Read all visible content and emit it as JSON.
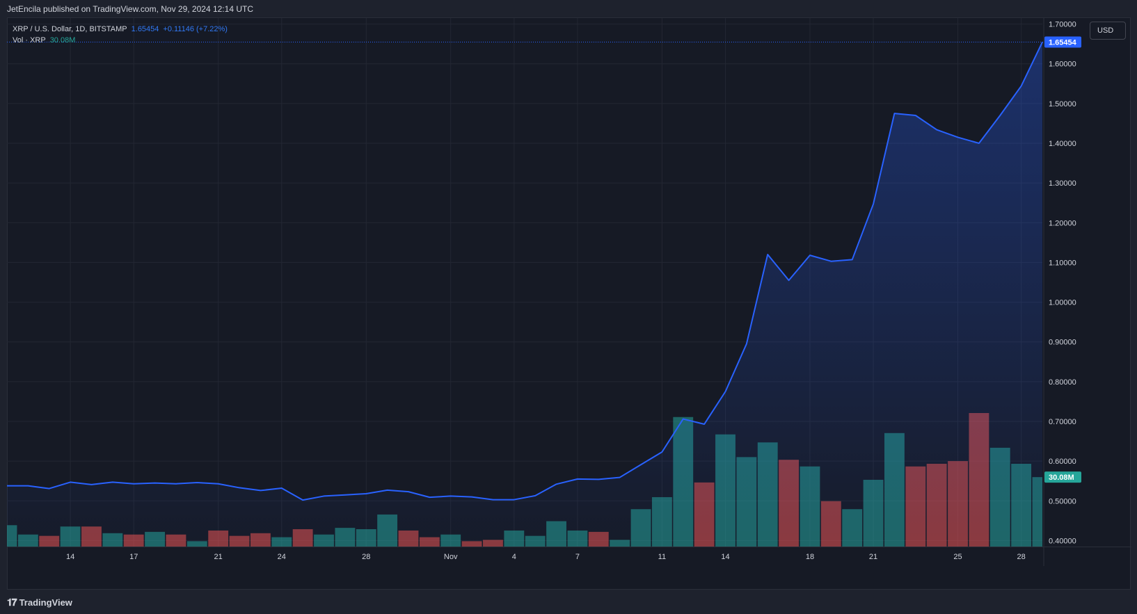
{
  "header": {
    "published_text": "JetEncila published on TradingView.com, Nov 29, 2024 12:14 UTC"
  },
  "legend": {
    "symbol_text": "XRP / U.S. Dollar, 1D, BITSTAMP",
    "last_price": "1.65454",
    "change": "+0.11146 (+7.22%)",
    "vol_label": "Vol · XRP",
    "vol_value": "30.08M"
  },
  "currency_button": "USD",
  "footer": {
    "brand": "TradingView"
  },
  "colors": {
    "line": "#2962ff",
    "area_top": "#2962ff",
    "vol_up": "#26a69a",
    "vol_down": "#ef5350",
    "price_badge": "#2962ff",
    "vol_badge": "#26a69a"
  },
  "chart_data": {
    "type": "area",
    "title": "",
    "xlabel": "",
    "ylabel": "",
    "y_axis_ticks": [
      "1.70000",
      "1.60000",
      "1.50000",
      "1.40000",
      "1.30000",
      "1.20000",
      "1.10000",
      "1.00000",
      "0.90000",
      "0.80000",
      "0.70000",
      "0.60000",
      "0.50000",
      "0.40000"
    ],
    "ylim": [
      0.385,
      1.715
    ],
    "x_axis_ticks": [
      {
        "label": "14",
        "date": "2024-10-14"
      },
      {
        "label": "17",
        "date": "2024-10-17"
      },
      {
        "label": "21",
        "date": "2024-10-21"
      },
      {
        "label": "24",
        "date": "2024-10-24"
      },
      {
        "label": "28",
        "date": "2024-10-28"
      },
      {
        "label": "Nov",
        "date": "2024-11-01"
      },
      {
        "label": "4",
        "date": "2024-11-04"
      },
      {
        "label": "7",
        "date": "2024-11-07"
      },
      {
        "label": "11",
        "date": "2024-11-11"
      },
      {
        "label": "14",
        "date": "2024-11-14"
      },
      {
        "label": "18",
        "date": "2024-11-18"
      },
      {
        "label": "21",
        "date": "2024-11-21"
      },
      {
        "label": "25",
        "date": "2024-11-25"
      },
      {
        "label": "28",
        "date": "2024-11-28"
      }
    ],
    "grid": true,
    "last_price_label": "1.65454",
    "last_volume_label": "30.08M",
    "series": [
      {
        "name": "XRP / U.S. Dollar",
        "points": [
          {
            "date": "2024-10-11",
            "close": 0.538
          },
          {
            "date": "2024-10-12",
            "close": 0.538
          },
          {
            "date": "2024-10-13",
            "close": 0.531
          },
          {
            "date": "2024-10-14",
            "close": 0.547
          },
          {
            "date": "2024-10-15",
            "close": 0.541
          },
          {
            "date": "2024-10-16",
            "close": 0.547
          },
          {
            "date": "2024-10-17",
            "close": 0.543
          },
          {
            "date": "2024-10-18",
            "close": 0.545
          },
          {
            "date": "2024-10-19",
            "close": 0.543
          },
          {
            "date": "2024-10-20",
            "close": 0.546
          },
          {
            "date": "2024-10-21",
            "close": 0.543
          },
          {
            "date": "2024-10-22",
            "close": 0.533
          },
          {
            "date": "2024-10-23",
            "close": 0.526
          },
          {
            "date": "2024-10-24",
            "close": 0.532
          },
          {
            "date": "2024-10-25",
            "close": 0.502
          },
          {
            "date": "2024-10-26",
            "close": 0.512
          },
          {
            "date": "2024-10-27",
            "close": 0.515
          },
          {
            "date": "2024-10-28",
            "close": 0.518
          },
          {
            "date": "2024-10-29",
            "close": 0.527
          },
          {
            "date": "2024-10-30",
            "close": 0.523
          },
          {
            "date": "2024-10-31",
            "close": 0.509
          },
          {
            "date": "2024-11-01",
            "close": 0.512
          },
          {
            "date": "2024-11-02",
            "close": 0.51
          },
          {
            "date": "2024-11-03",
            "close": 0.503
          },
          {
            "date": "2024-11-04",
            "close": 0.503
          },
          {
            "date": "2024-11-05",
            "close": 0.513
          },
          {
            "date": "2024-11-06",
            "close": 0.542
          },
          {
            "date": "2024-11-07",
            "close": 0.555
          },
          {
            "date": "2024-11-08",
            "close": 0.554
          },
          {
            "date": "2024-11-09",
            "close": 0.559
          },
          {
            "date": "2024-11-10",
            "close": 0.591
          },
          {
            "date": "2024-11-11",
            "close": 0.623
          },
          {
            "date": "2024-11-12",
            "close": 0.706
          },
          {
            "date": "2024-11-13",
            "close": 0.693
          },
          {
            "date": "2024-11-14",
            "close": 0.775
          },
          {
            "date": "2024-11-15",
            "close": 0.895
          },
          {
            "date": "2024-11-16",
            "close": 1.12
          },
          {
            "date": "2024-11-17",
            "close": 1.055
          },
          {
            "date": "2024-11-18",
            "close": 1.118
          },
          {
            "date": "2024-11-19",
            "close": 1.103
          },
          {
            "date": "2024-11-20",
            "close": 1.107
          },
          {
            "date": "2024-11-21",
            "close": 1.247
          },
          {
            "date": "2024-11-22",
            "close": 1.475
          },
          {
            "date": "2024-11-23",
            "close": 1.47
          },
          {
            "date": "2024-11-24",
            "close": 1.434
          },
          {
            "date": "2024-11-25",
            "close": 1.415
          },
          {
            "date": "2024-11-26",
            "close": 1.4
          },
          {
            "date": "2024-11-27",
            "close": 1.47
          },
          {
            "date": "2024-11-28",
            "close": 1.544
          },
          {
            "date": "2024-11-29",
            "close": 1.65454
          }
        ]
      },
      {
        "name": "Vol · XRP",
        "volume_relative_to_max": [
          {
            "date": "2024-10-11",
            "rel": 0.16,
            "dir": "up"
          },
          {
            "date": "2024-10-12",
            "rel": 0.09,
            "dir": "up"
          },
          {
            "date": "2024-10-13",
            "rel": 0.08,
            "dir": "down"
          },
          {
            "date": "2024-10-14",
            "rel": 0.15,
            "dir": "up"
          },
          {
            "date": "2024-10-15",
            "rel": 0.15,
            "dir": "down"
          },
          {
            "date": "2024-10-16",
            "rel": 0.1,
            "dir": "up"
          },
          {
            "date": "2024-10-17",
            "rel": 0.09,
            "dir": "down"
          },
          {
            "date": "2024-10-18",
            "rel": 0.11,
            "dir": "up"
          },
          {
            "date": "2024-10-19",
            "rel": 0.09,
            "dir": "down"
          },
          {
            "date": "2024-10-20",
            "rel": 0.04,
            "dir": "up"
          },
          {
            "date": "2024-10-21",
            "rel": 0.12,
            "dir": "down"
          },
          {
            "date": "2024-10-22",
            "rel": 0.08,
            "dir": "down"
          },
          {
            "date": "2024-10-23",
            "rel": 0.1,
            "dir": "down"
          },
          {
            "date": "2024-10-24",
            "rel": 0.07,
            "dir": "up"
          },
          {
            "date": "2024-10-25",
            "rel": 0.13,
            "dir": "down"
          },
          {
            "date": "2024-10-26",
            "rel": 0.09,
            "dir": "up"
          },
          {
            "date": "2024-10-27",
            "rel": 0.14,
            "dir": "up"
          },
          {
            "date": "2024-10-28",
            "rel": 0.13,
            "dir": "up"
          },
          {
            "date": "2024-10-29",
            "rel": 0.24,
            "dir": "up"
          },
          {
            "date": "2024-10-30",
            "rel": 0.12,
            "dir": "down"
          },
          {
            "date": "2024-10-31",
            "rel": 0.07,
            "dir": "down"
          },
          {
            "date": "2024-11-01",
            "rel": 0.09,
            "dir": "up"
          },
          {
            "date": "2024-11-02",
            "rel": 0.04,
            "dir": "down"
          },
          {
            "date": "2024-11-03",
            "rel": 0.05,
            "dir": "down"
          },
          {
            "date": "2024-11-04",
            "rel": 0.12,
            "dir": "up"
          },
          {
            "date": "2024-11-05",
            "rel": 0.08,
            "dir": "up"
          },
          {
            "date": "2024-11-06",
            "rel": 0.19,
            "dir": "up"
          },
          {
            "date": "2024-11-07",
            "rel": 0.12,
            "dir": "up"
          },
          {
            "date": "2024-11-08",
            "rel": 0.11,
            "dir": "down"
          },
          {
            "date": "2024-11-09",
            "rel": 0.05,
            "dir": "up"
          },
          {
            "date": "2024-11-10",
            "rel": 0.28,
            "dir": "up"
          },
          {
            "date": "2024-11-11",
            "rel": 0.37,
            "dir": "up"
          },
          {
            "date": "2024-11-12",
            "rel": 0.97,
            "dir": "up"
          },
          {
            "date": "2024-11-13",
            "rel": 0.48,
            "dir": "down"
          },
          {
            "date": "2024-11-14",
            "rel": 0.84,
            "dir": "up"
          },
          {
            "date": "2024-11-15",
            "rel": 0.67,
            "dir": "up"
          },
          {
            "date": "2024-11-16",
            "rel": 0.78,
            "dir": "up"
          },
          {
            "date": "2024-11-17",
            "rel": 0.65,
            "dir": "down"
          },
          {
            "date": "2024-11-18",
            "rel": 0.6,
            "dir": "up"
          },
          {
            "date": "2024-11-19",
            "rel": 0.34,
            "dir": "down"
          },
          {
            "date": "2024-11-20",
            "rel": 0.28,
            "dir": "up"
          },
          {
            "date": "2024-11-21",
            "rel": 0.5,
            "dir": "up"
          },
          {
            "date": "2024-11-22",
            "rel": 0.85,
            "dir": "up"
          },
          {
            "date": "2024-11-23",
            "rel": 0.6,
            "dir": "down"
          },
          {
            "date": "2024-11-24",
            "rel": 0.62,
            "dir": "down"
          },
          {
            "date": "2024-11-25",
            "rel": 0.64,
            "dir": "down"
          },
          {
            "date": "2024-11-26",
            "rel": 1.0,
            "dir": "down"
          },
          {
            "date": "2024-11-27",
            "rel": 0.74,
            "dir": "up"
          },
          {
            "date": "2024-11-28",
            "rel": 0.62,
            "dir": "up"
          },
          {
            "date": "2024-11-29",
            "rel": 0.52,
            "dir": "up"
          }
        ]
      }
    ]
  }
}
